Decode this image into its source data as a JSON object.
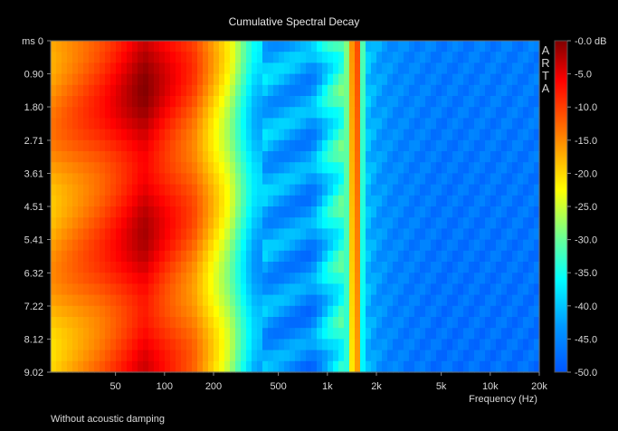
{
  "chart_data": {
    "type": "heatmap",
    "title": "Cumulative Spectral Decay",
    "xlabel": "Frequency (Hz)",
    "ylabel": "ms",
    "x_scale": "log",
    "xlim": [
      20,
      20000
    ],
    "ylim": [
      0,
      9.02
    ],
    "x_ticks": [
      {
        "value": 50,
        "label": "50"
      },
      {
        "value": 100,
        "label": "100"
      },
      {
        "value": 200,
        "label": "200"
      },
      {
        "value": 500,
        "label": "500"
      },
      {
        "value": 1000,
        "label": "1k"
      },
      {
        "value": 2000,
        "label": "2k"
      },
      {
        "value": 5000,
        "label": "5k"
      },
      {
        "value": 10000,
        "label": "10k"
      },
      {
        "value": 20000,
        "label": "20k"
      }
    ],
    "y_ticks": [
      {
        "value": 0,
        "label": "ms 0"
      },
      {
        "value": 0.9,
        "label": "0.90"
      },
      {
        "value": 1.8,
        "label": "1.80"
      },
      {
        "value": 2.71,
        "label": "2.71"
      },
      {
        "value": 3.61,
        "label": "3.61"
      },
      {
        "value": 4.51,
        "label": "4.51"
      },
      {
        "value": 5.41,
        "label": "5.41"
      },
      {
        "value": 6.32,
        "label": "6.32"
      },
      {
        "value": 7.22,
        "label": "7.22"
      },
      {
        "value": 8.12,
        "label": "8.12"
      },
      {
        "value": 9.02,
        "label": "9.02"
      }
    ],
    "colorbar": {
      "range": [
        -50,
        0
      ],
      "unit": "dB",
      "ticks": [
        {
          "value": 0,
          "label": "-0.0 dB"
        },
        {
          "value": -5,
          "label": "-5.0"
        },
        {
          "value": -10,
          "label": "-10.0"
        },
        {
          "value": -15,
          "label": "-15.0"
        },
        {
          "value": -20,
          "label": "-20.0"
        },
        {
          "value": -25,
          "label": "-25.0"
        },
        {
          "value": -30,
          "label": "-30.0"
        },
        {
          "value": -35,
          "label": "-35.0"
        },
        {
          "value": -40,
          "label": "-40.0"
        },
        {
          "value": -45,
          "label": "-45.0"
        },
        {
          "value": -50,
          "label": "-50.0"
        }
      ]
    },
    "profile_at_0ms": {
      "freq_hz": [
        20,
        40,
        75,
        150,
        250,
        350,
        450,
        600,
        800,
        1000,
        1300,
        1500,
        1700,
        2000,
        2500,
        3200,
        5000,
        10000,
        20000
      ],
      "level_db": [
        -15,
        -9,
        -2,
        -11,
        -24,
        -38,
        -41,
        -42,
        -43,
        -36,
        -30,
        -6,
        -39,
        -42,
        -44,
        -45,
        -46,
        -46,
        -46
      ]
    },
    "watermark": "ARTA",
    "caption": "Without acoustic damping"
  }
}
